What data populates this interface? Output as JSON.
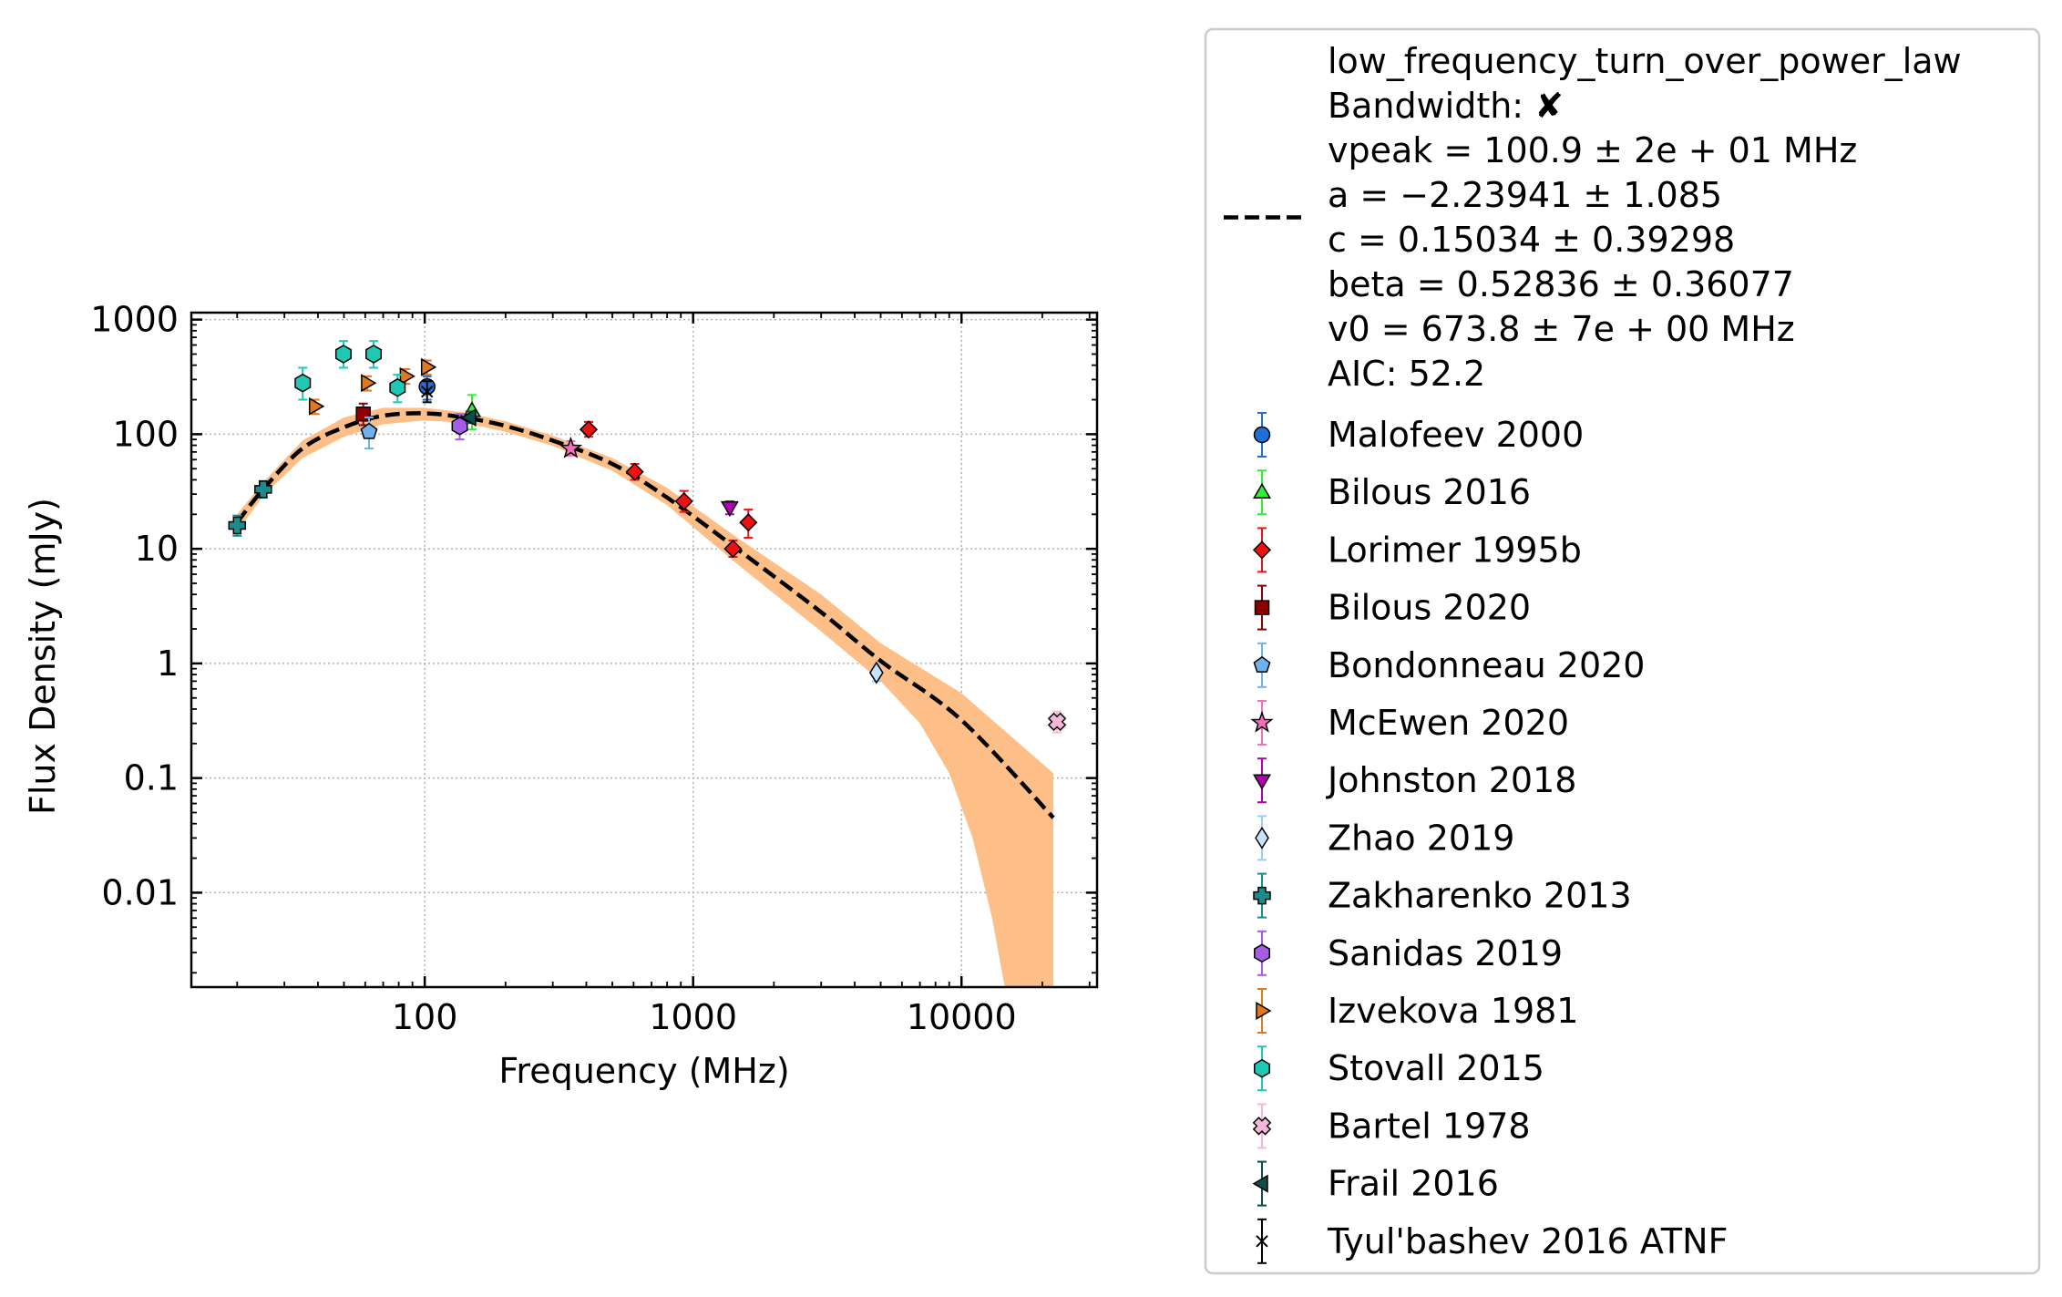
{
  "chart_data": {
    "type": "scatter",
    "xlabel": "Frequency (MHz)",
    "ylabel": "Flux Density (mJy)",
    "x_scale": "log",
    "y_scale": "log",
    "xlim": [
      13.5,
      32000
    ],
    "ylim": [
      0.0015,
      1150
    ],
    "x_ticks": [
      {
        "value": 100,
        "label": "100"
      },
      {
        "value": 1000,
        "label": "1000"
      },
      {
        "value": 10000,
        "label": "10000"
      }
    ],
    "y_ticks": [
      {
        "value": 1000,
        "label": "1000"
      },
      {
        "value": 100,
        "label": "100"
      },
      {
        "value": 10,
        "label": "10"
      },
      {
        "value": 1,
        "label": "1"
      },
      {
        "value": 0.1,
        "label": "0.1"
      },
      {
        "value": 0.01,
        "label": "0.01"
      }
    ],
    "grid": true,
    "legend_position": "outside-right",
    "fit": {
      "model": "low_frequency_turn_over_power_law",
      "color": "#000000",
      "band_color": "#fdbf87",
      "text_lines": [
        "low_frequency_turn_over_power_law",
        "Bandwidth: ✘",
        "vpeak = 100.9 ± 2e + 01 MHz",
        "a = −2.23941 ± 1.085",
        "c = 0.15034 ± 0.39298",
        "beta = 0.52836 ± 0.36077",
        "v0 = 673.8 ± 7e + 00 MHz",
        "AIC: 52.2"
      ],
      "curve": [
        [
          20,
          17
        ],
        [
          25,
          33
        ],
        [
          35,
          75
        ],
        [
          50,
          115
        ],
        [
          70,
          145
        ],
        [
          100,
          152
        ],
        [
          140,
          140
        ],
        [
          200,
          118
        ],
        [
          300,
          88
        ],
        [
          500,
          55
        ],
        [
          800,
          28
        ],
        [
          1500,
          9.5
        ],
        [
          3000,
          2.8
        ],
        [
          5000,
          1.05
        ],
        [
          10000,
          0.32
        ],
        [
          22000,
          0.045
        ]
      ],
      "band_upper": [
        [
          20,
          20
        ],
        [
          25,
          38
        ],
        [
          35,
          88
        ],
        [
          50,
          140
        ],
        [
          70,
          170
        ],
        [
          100,
          170
        ],
        [
          140,
          155
        ],
        [
          200,
          130
        ],
        [
          300,
          97
        ],
        [
          500,
          62
        ],
        [
          800,
          34
        ],
        [
          1500,
          12
        ],
        [
          3000,
          4
        ],
        [
          5000,
          1.5
        ],
        [
          10000,
          0.55
        ],
        [
          22000,
          0.11
        ]
      ],
      "band_lower": [
        [
          20,
          14
        ],
        [
          25,
          29
        ],
        [
          35,
          62
        ],
        [
          50,
          95
        ],
        [
          70,
          122
        ],
        [
          100,
          132
        ],
        [
          140,
          126
        ],
        [
          200,
          105
        ],
        [
          300,
          79
        ],
        [
          500,
          48
        ],
        [
          800,
          24
        ],
        [
          1500,
          7
        ],
        [
          3000,
          1.9
        ],
        [
          5000,
          0.7
        ],
        [
          7000,
          0.3
        ],
        [
          9000,
          0.11
        ],
        [
          11000,
          0.03
        ],
        [
          13000,
          0.006
        ],
        [
          14500,
          0.0015
        ],
        [
          22000,
          0.0015
        ]
      ]
    },
    "series": [
      {
        "name": "Malofeev 2000",
        "marker": "circle",
        "color": "#1f6fd6",
        "ecolor": "#1f6fd6",
        "points": [
          {
            "x": 102,
            "y": 260,
            "lo": 200,
            "hi": 320
          }
        ]
      },
      {
        "name": "Bilous 2016",
        "marker": "triangle-up",
        "color": "#33ee33",
        "ecolor": "#33ee33",
        "points": [
          {
            "x": 150,
            "y": 160,
            "lo": 110,
            "hi": 220
          }
        ]
      },
      {
        "name": "Lorimer 1995b",
        "marker": "diamond",
        "color": "#ee1111",
        "ecolor": "#ee1111",
        "points": [
          {
            "x": 408,
            "y": 110,
            "lo": 95,
            "hi": 128
          },
          {
            "x": 606,
            "y": 47,
            "lo": 40,
            "hi": 55
          },
          {
            "x": 925,
            "y": 26,
            "lo": 21,
            "hi": 32
          },
          {
            "x": 1408,
            "y": 10,
            "lo": 8.5,
            "hi": 11.8
          },
          {
            "x": 1606,
            "y": 17,
            "lo": 12.5,
            "hi": 22
          }
        ]
      },
      {
        "name": "Bilous 2020",
        "marker": "square",
        "color": "#8b0000",
        "ecolor": "#8b0000",
        "points": [
          {
            "x": 59,
            "y": 150,
            "lo": 120,
            "hi": 185
          }
        ]
      },
      {
        "name": "Bondonneau 2020",
        "marker": "pentagon",
        "color": "#6fb1ef",
        "ecolor": "#6fb1ef",
        "points": [
          {
            "x": 62,
            "y": 105,
            "lo": 75,
            "hi": 140
          }
        ]
      },
      {
        "name": "McEwen 2020",
        "marker": "star",
        "color": "#f36fbd",
        "ecolor": "#f36fbd",
        "points": [
          {
            "x": 350,
            "y": 75,
            "lo": 65,
            "hi": 87
          }
        ]
      },
      {
        "name": "Johnston 2018",
        "marker": "triangle-down",
        "color": "#b000b0",
        "ecolor": "#b000b0",
        "points": [
          {
            "x": 1369,
            "y": 23,
            "lo": 20,
            "hi": 26
          }
        ]
      },
      {
        "name": "Zhao 2019",
        "marker": "thin-diamond",
        "color": "#c6e3fb",
        "ecolor": "#9ecbf5",
        "points": [
          {
            "x": 4820,
            "y": 0.83,
            "lo": 0.7,
            "hi": 0.97
          }
        ]
      },
      {
        "name": "Zakharenko 2013",
        "marker": "plus",
        "color": "#1a8c8c",
        "ecolor": "#1a8c8c",
        "points": [
          {
            "x": 20,
            "y": 16,
            "lo": 13,
            "hi": 19.5
          },
          {
            "x": 25,
            "y": 33,
            "lo": 28,
            "hi": 39
          }
        ]
      },
      {
        "name": "Sanidas 2019",
        "marker": "hexagon",
        "color": "#a55ce6",
        "ecolor": "#a55ce6",
        "points": [
          {
            "x": 135,
            "y": 118,
            "lo": 90,
            "hi": 150
          }
        ]
      },
      {
        "name": "Izvekova 1981",
        "marker": "triangle-right",
        "color": "#e0781f",
        "ecolor": "#e0781f",
        "points": [
          {
            "x": 39,
            "y": 175,
            "lo": 150,
            "hi": 200
          },
          {
            "x": 61,
            "y": 280,
            "lo": 240,
            "hi": 320
          },
          {
            "x": 85,
            "y": 320,
            "lo": 275,
            "hi": 370
          },
          {
            "x": 102,
            "y": 385,
            "lo": 330,
            "hi": 440
          }
        ]
      },
      {
        "name": "Stovall 2015",
        "marker": "hexagon",
        "color": "#1ec8b4",
        "ecolor": "#1ec8b4",
        "points": [
          {
            "x": 35.1,
            "y": 280,
            "lo": 200,
            "hi": 380
          },
          {
            "x": 49.8,
            "y": 500,
            "lo": 380,
            "hi": 650
          },
          {
            "x": 64.5,
            "y": 500,
            "lo": 380,
            "hi": 650
          },
          {
            "x": 79.2,
            "y": 255,
            "lo": 190,
            "hi": 330
          }
        ]
      },
      {
        "name": "Bartel 1978",
        "marker": "x-square",
        "color": "#f4b6d9",
        "ecolor": "#f4b6d9",
        "points": [
          {
            "x": 22700,
            "y": 0.31,
            "lo": 0.25,
            "hi": 0.38
          }
        ]
      },
      {
        "name": "Frail 2016",
        "marker": "triangle-left",
        "color": "#0f4d4d",
        "ecolor": "#0f4d4d",
        "points": [
          {
            "x": 147.5,
            "y": 140,
            "lo": 125,
            "hi": 158
          }
        ]
      },
      {
        "name": "Tyul'bashev 2016 ATNF",
        "marker": "thin-x",
        "color": "#000000",
        "ecolor": "#000000",
        "points": [
          {
            "x": 102,
            "y": 235,
            "lo": 190,
            "hi": 290
          }
        ]
      }
    ]
  }
}
